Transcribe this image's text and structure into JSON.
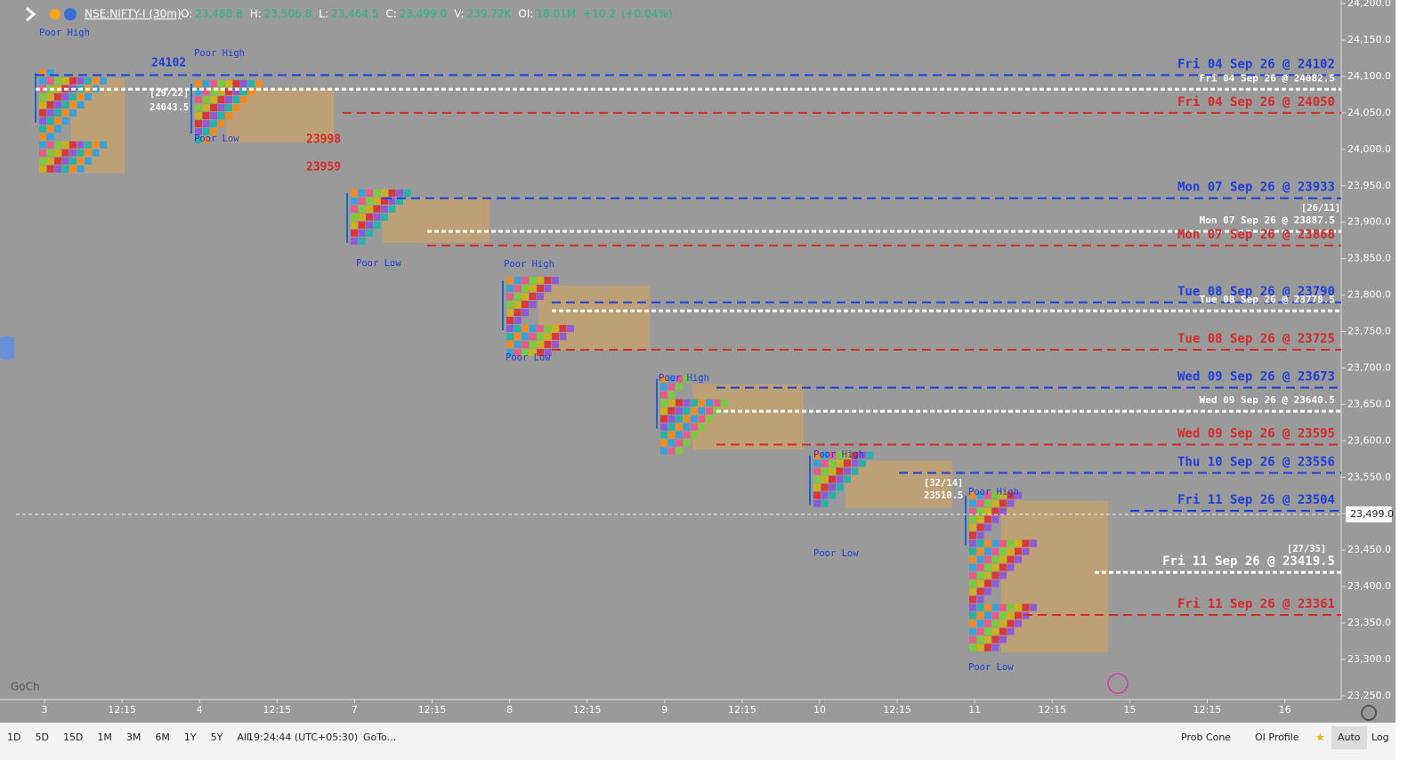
{
  "header": {
    "symbol": "NSE:NIFTY-I (30m)",
    "fields": [
      {
        "label": "O:",
        "value": "23,488.8"
      },
      {
        "label": "H:",
        "value": "23,506.8"
      },
      {
        "label": "L:",
        "value": "23,464.5"
      },
      {
        "label": "C:",
        "value": "23,499.0"
      },
      {
        "label": "V:",
        "value": "239.72K"
      },
      {
        "label": "OI:",
        "value": "18.01M"
      }
    ],
    "change": "+10.2",
    "change_pct": "(+0.04%)"
  },
  "price_axis": {
    "ylim": [
      23245,
      24205
    ],
    "ticks": [
      {
        "value": 24200,
        "label": "24,200.0"
      },
      {
        "value": 24150,
        "label": "24,150.0"
      },
      {
        "value": 24100,
        "label": "24,100.0"
      },
      {
        "value": 24050,
        "label": "24,050.0"
      },
      {
        "value": 24000,
        "label": "24,000.0"
      },
      {
        "value": 23950,
        "label": "23,950.0"
      },
      {
        "value": 23900,
        "label": "23,900.0"
      },
      {
        "value": 23850,
        "label": "23,850.0"
      },
      {
        "value": 23800,
        "label": "23,800.0"
      },
      {
        "value": 23750,
        "label": "23,750.0"
      },
      {
        "value": 23700,
        "label": "23,700.0"
      },
      {
        "value": 23650,
        "label": "23,650.0"
      },
      {
        "value": 23600,
        "label": "23,600.0"
      },
      {
        "value": 23550,
        "label": "23,550.0"
      },
      {
        "value": 23500,
        "label": "23,500.0"
      },
      {
        "value": 23450,
        "label": "23,450.0"
      },
      {
        "value": 23400,
        "label": "23,400.0"
      },
      {
        "value": 23350,
        "label": "23,350.0"
      },
      {
        "value": 23300,
        "label": "23,300.0"
      },
      {
        "value": 23250,
        "label": "23,250.0"
      }
    ],
    "last_price": {
      "value": 23499,
      "label": "23,499.0"
    }
  },
  "time_axis": {
    "labels": [
      "3",
      "12:15",
      "4",
      "12:15",
      "7",
      "12:15",
      "8",
      "12:15",
      "9",
      "12:15",
      "10",
      "12:15",
      "11",
      "12:15",
      "15",
      "12:15",
      "16"
    ]
  },
  "levels": [
    {
      "label": "Fri 04 Sep 26 @ 24102",
      "price": 24102,
      "kind": "high"
    },
    {
      "label": "Fri 04 Sep 26 @ 24082.5",
      "price": 24082.5,
      "kind": "poc"
    },
    {
      "label": "Fri 04 Sep 26 @ 24050",
      "price": 24050,
      "kind": "low"
    },
    {
      "label": "Mon 07 Sep 26 @ 23933",
      "price": 23933,
      "kind": "high"
    },
    {
      "label": "Mon 07 Sep 26 @ 23887.5",
      "price": 23887.5,
      "kind": "poc"
    },
    {
      "label": "Mon 07 Sep 26 @ 23868",
      "price": 23868,
      "kind": "low"
    },
    {
      "label": "Tue 08 Sep 26 @ 23790",
      "price": 23790,
      "kind": "high"
    },
    {
      "label": "Tue 08 Sep 26 @ 23778.5",
      "price": 23778.5,
      "kind": "poc"
    },
    {
      "label": "Tue 08 Sep 26 @ 23725",
      "price": 23725,
      "kind": "low"
    },
    {
      "label": "Wed 09 Sep 26 @ 23673",
      "price": 23673,
      "kind": "high"
    },
    {
      "label": "Wed 09 Sep 26 @ 23640.5",
      "price": 23640.5,
      "kind": "poc"
    },
    {
      "label": "Wed 09 Sep 26 @ 23595",
      "price": 23595,
      "kind": "low"
    },
    {
      "label": "Thu 10 Sep 26 @ 23556",
      "price": 23556,
      "kind": "high"
    },
    {
      "label": "Fri 11 Sep 26 @ 23504",
      "price": 23504,
      "kind": "high"
    },
    {
      "label": "Fri 11 Sep 26 @ 23419.5",
      "price": 23419.5,
      "kind": "poc"
    },
    {
      "label": "Fri 11 Sep 26 @ 23361",
      "price": 23361,
      "kind": "low"
    }
  ],
  "annotations": [
    "Poor High",
    "24102",
    "[29/22]",
    "24043.5",
    "Poor High",
    "Poor Low",
    "23998",
    "23959",
    "Poor Low",
    "Poor High",
    "Poor Low",
    "Poor High",
    "Poor High",
    "Poor Low",
    "[32/14]",
    "23510.5",
    "Poor High",
    "Poor Low",
    "[26/11]",
    "[27/35]"
  ],
  "toolbar": {
    "ranges": [
      "1D",
      "5D",
      "15D",
      "1M",
      "3M",
      "6M",
      "1Y",
      "5Y",
      "All"
    ],
    "clock": "19:24:44 (UTC+05:30)",
    "goto": "GoTo...",
    "right": [
      "Prob Cone",
      "OI Profile",
      "Auto",
      "Log"
    ]
  },
  "watermark": "GoCh"
}
